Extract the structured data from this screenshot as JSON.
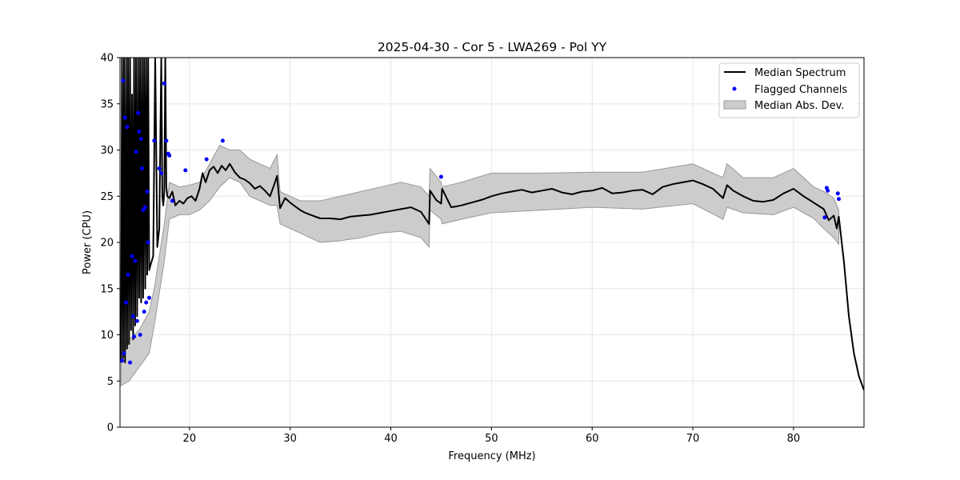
{
  "chart_data": {
    "type": "line",
    "title": "2025-04-30 - Cor 5 - LWA269 - Pol YY",
    "xlabel": "Frequency (MHz)",
    "ylabel": "Power (CPU)",
    "xlim": [
      13.1,
      87.0
    ],
    "ylim": [
      0,
      40
    ],
    "xticks": [
      20,
      30,
      40,
      50,
      60,
      70,
      80
    ],
    "yticks": [
      0,
      5,
      10,
      15,
      20,
      25,
      30,
      35,
      40
    ],
    "grid": true,
    "legend_position": "top-right",
    "colors": {
      "median": "#000000",
      "flagged": "#0000ff",
      "mad_fill": "#cccccc",
      "mad_edge": "#999999"
    },
    "series": [
      {
        "name": "Median Spectrum",
        "kind": "line",
        "x": [
          13.2,
          13.3,
          13.4,
          13.5,
          13.6,
          13.7,
          13.8,
          13.9,
          14.0,
          14.1,
          14.2,
          14.3,
          14.4,
          14.5,
          14.6,
          14.7,
          14.8,
          14.9,
          15.0,
          15.1,
          15.2,
          15.3,
          15.4,
          15.5,
          15.6,
          15.7,
          15.8,
          15.9,
          16.0,
          16.2,
          16.4,
          16.6,
          16.8,
          17.0,
          17.2,
          17.3,
          17.4,
          17.5,
          17.6,
          17.7,
          17.8,
          18.0,
          18.3,
          18.6,
          19.0,
          19.4,
          19.8,
          20.2,
          20.6,
          21.0,
          21.3,
          21.6,
          22.0,
          22.4,
          22.8,
          23.2,
          23.6,
          24.0,
          24.5,
          25.0,
          25.5,
          26.0,
          26.5,
          27.0,
          27.5,
          28.0,
          28.5,
          28.7,
          29.0,
          29.5,
          30.0,
          30.5,
          31.0,
          31.5,
          32.0,
          33.0,
          34.0,
          35.0,
          36.0,
          37.0,
          38.0,
          39.0,
          40.0,
          41.0,
          42.0,
          43.0,
          43.8,
          43.9,
          44.5,
          45.0,
          45.1,
          46.0,
          47.0,
          48.0,
          49.0,
          50.0,
          51.0,
          52.0,
          53.0,
          54.0,
          55.0,
          56.0,
          57.0,
          58.0,
          59.0,
          60.0,
          61.0,
          62.0,
          63.0,
          64.0,
          65.0,
          66.0,
          67.0,
          68.0,
          69.0,
          70.0,
          71.0,
          72.0,
          73.0,
          73.4,
          74.0,
          75.0,
          76.0,
          77.0,
          78.0,
          79.0,
          80.0,
          81.0,
          82.0,
          83.0,
          83.5,
          84.0,
          84.3,
          84.5,
          85.0,
          85.5,
          86.0,
          86.5,
          87.0
        ],
        "y": [
          7.0,
          40.0,
          7.5,
          40.0,
          7.0,
          40.0,
          8.5,
          40.0,
          9.0,
          40.0,
          10.5,
          36.0,
          9.5,
          40.0,
          11.0,
          40.0,
          12.0,
          40.0,
          14.0,
          40.0,
          13.5,
          40.0,
          14.0,
          40.0,
          15.0,
          40.0,
          16.5,
          40.0,
          17.0,
          17.8,
          18.5,
          40.0,
          19.5,
          21.5,
          40.0,
          25.0,
          24.0,
          25.5,
          40.0,
          26.0,
          25.0,
          24.8,
          25.5,
          24.0,
          24.5,
          24.2,
          24.8,
          25.0,
          24.5,
          25.8,
          27.5,
          26.5,
          27.8,
          28.2,
          27.5,
          28.3,
          27.8,
          28.5,
          27.6,
          27.0,
          26.8,
          26.4,
          25.8,
          26.1,
          25.6,
          25.0,
          26.5,
          27.2,
          23.7,
          24.8,
          24.3,
          23.9,
          23.5,
          23.2,
          23.0,
          22.6,
          22.6,
          22.5,
          22.8,
          22.9,
          23.0,
          23.2,
          23.4,
          23.6,
          23.8,
          23.3,
          22.0,
          25.6,
          24.6,
          24.2,
          25.8,
          23.8,
          24.0,
          24.3,
          24.6,
          25.0,
          25.3,
          25.5,
          25.7,
          25.4,
          25.6,
          25.8,
          25.4,
          25.2,
          25.5,
          25.6,
          25.9,
          25.3,
          25.4,
          25.6,
          25.7,
          25.2,
          26.0,
          26.3,
          26.5,
          26.7,
          26.3,
          25.8,
          24.8,
          26.2,
          25.6,
          25.0,
          24.5,
          24.4,
          24.6,
          25.3,
          25.8,
          25.0,
          24.3,
          23.6,
          22.4,
          22.9,
          21.5,
          22.8,
          18.0,
          12.0,
          8.0,
          5.5,
          4.0
        ]
      },
      {
        "name": "Flagged Channels",
        "kind": "scatter",
        "x": [
          13.3,
          13.4,
          13.5,
          13.6,
          13.7,
          13.8,
          13.9,
          14.1,
          14.3,
          14.4,
          14.5,
          14.6,
          14.7,
          14.8,
          14.9,
          15.0,
          15.1,
          15.2,
          15.3,
          15.4,
          15.5,
          15.6,
          15.7,
          15.8,
          15.9,
          16.0,
          16.5,
          17.0,
          17.2,
          17.5,
          17.7,
          17.9,
          18.0,
          18.3,
          19.6,
          21.7,
          23.3,
          45.0,
          83.1,
          83.3,
          83.4,
          84.4,
          84.5
        ],
        "y": [
          7.2,
          37.5,
          8.0,
          33.5,
          13.5,
          32.5,
          16.5,
          7.0,
          18.5,
          12.0,
          9.8,
          18.0,
          29.8,
          11.5,
          34.0,
          32.0,
          10.0,
          31.2,
          28.0,
          23.5,
          12.5,
          23.8,
          13.5,
          25.5,
          20.0,
          14.0,
          31.0,
          28.0,
          27.5,
          37.2,
          31.0,
          29.6,
          29.4,
          24.5,
          27.8,
          29.0,
          31.0,
          27.1,
          22.7,
          25.9,
          25.6,
          25.3,
          24.7
        ]
      },
      {
        "name": "Median Abs. Dev.",
        "kind": "band",
        "x": [
          13.2,
          14.0,
          15.0,
          16.0,
          16.5,
          17.0,
          17.5,
          18.0,
          19.0,
          20.0,
          21.0,
          22.0,
          23.0,
          24.0,
          25.0,
          26.0,
          27.0,
          28.0,
          28.7,
          29.0,
          30.0,
          31.0,
          32.0,
          33.0,
          35.0,
          37.0,
          39.0,
          41.0,
          43.0,
          43.8,
          43.9,
          45.0,
          45.1,
          47.0,
          50.0,
          55.0,
          60.0,
          65.0,
          70.0,
          73.0,
          73.4,
          75.0,
          78.0,
          80.0,
          82.0,
          83.0,
          84.0,
          84.5
        ],
        "lower": [
          4.5,
          5.0,
          6.5,
          8.0,
          11.0,
          14.5,
          18.0,
          22.5,
          23.0,
          23.0,
          23.5,
          24.5,
          26.0,
          27.0,
          26.5,
          25.0,
          24.5,
          24.0,
          24.0,
          22.0,
          21.5,
          21.0,
          20.5,
          20.0,
          20.2,
          20.5,
          21.0,
          21.2,
          20.5,
          19.5,
          23.5,
          22.5,
          22.0,
          22.5,
          23.2,
          23.5,
          23.8,
          23.6,
          24.2,
          22.5,
          23.8,
          23.2,
          23.0,
          23.8,
          22.6,
          21.5,
          20.5,
          19.8
        ],
        "upper": [
          9.0,
          9.5,
          10.5,
          12.5,
          15.0,
          18.5,
          22.0,
          26.5,
          26.0,
          26.2,
          26.5,
          28.5,
          30.5,
          30.0,
          30.0,
          29.0,
          28.5,
          28.0,
          29.5,
          25.5,
          25.0,
          24.5,
          24.5,
          24.5,
          25.0,
          25.5,
          26.0,
          26.5,
          26.0,
          25.0,
          28.0,
          26.5,
          26.0,
          26.5,
          27.5,
          27.5,
          27.6,
          27.6,
          28.5,
          27.0,
          28.5,
          27.0,
          27.0,
          28.0,
          26.0,
          25.5,
          24.8,
          23.5
        ]
      }
    ]
  }
}
